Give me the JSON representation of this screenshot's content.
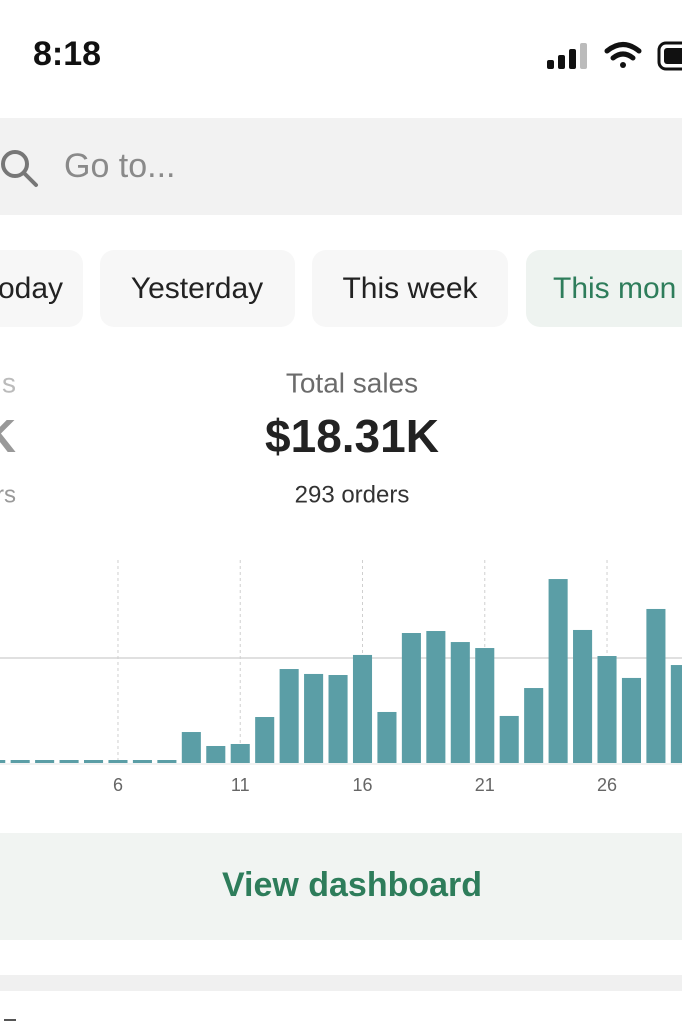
{
  "status_bar": {
    "time": "8:18"
  },
  "search": {
    "placeholder": "Go to..."
  },
  "tabs": [
    "oday",
    "Yesterday",
    "This week",
    "This mon"
  ],
  "stats": {
    "partial_title": "s",
    "partial_value": "K",
    "partial_orders": "rs",
    "title": "Total sales",
    "value": "$18.31K",
    "orders": "293 orders"
  },
  "chart_data": {
    "type": "bar",
    "x": [
      1,
      2,
      3,
      4,
      5,
      6,
      7,
      8,
      9,
      10,
      11,
      12,
      13,
      14,
      15,
      16,
      17,
      18,
      19,
      20,
      21,
      22,
      23,
      24,
      25,
      26,
      27,
      28,
      29
    ],
    "values": [
      0,
      0,
      0,
      0,
      0,
      0,
      0,
      0,
      295,
      162,
      181,
      438,
      895,
      848,
      838,
      1029,
      486,
      1238,
      1257,
      1152,
      1095,
      448,
      714,
      1752,
      1267,
      1019,
      810,
      1467,
      933
    ],
    "color": "#5b9ea6",
    "xlim": [
      0.5,
      31.5
    ],
    "xticks": [
      6,
      11,
      16,
      21,
      26
    ],
    "ylim": [
      0,
      2000
    ],
    "yticks": [
      1000
    ],
    "grid": true
  },
  "button": {
    "label": "View dashboard"
  }
}
